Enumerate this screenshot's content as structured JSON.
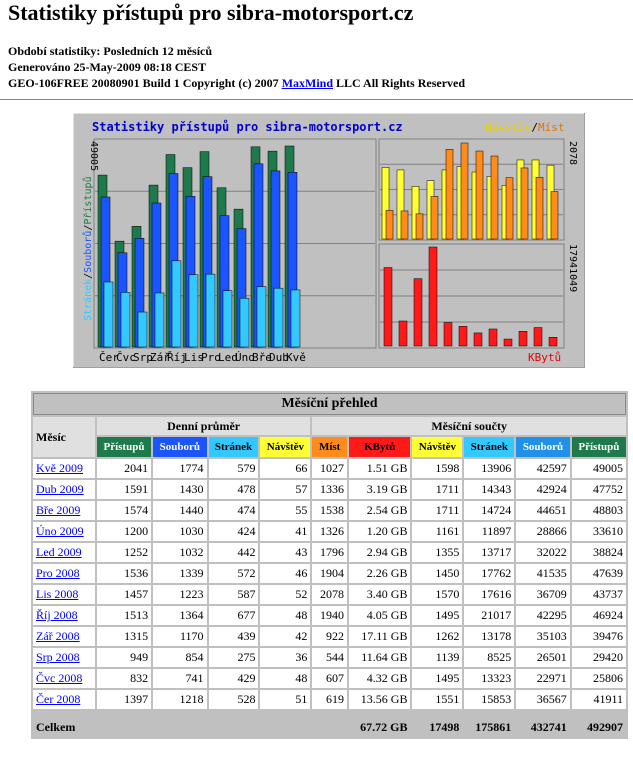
{
  "page": {
    "title": "Statistiky přístupů pro sibra-motorsport.cz",
    "period_label": "Období statistiky: Posledních 12 měsíců",
    "generated_label": "Generováno 25-May-2009 08:18 CEST",
    "copyright_prefix": "GEO-106FREE 20080901 Build 1 Copyright (c) 2007",
    "copyright_link": "MaxMind",
    "copyright_suffix": "LLC All Rights Reserved"
  },
  "chart_data": [
    {
      "type": "bar",
      "title": "Statistiky přístupů pro sibra-motorsport.cz",
      "categories": [
        "Čer",
        "Čvc",
        "Srp",
        "Zář",
        "Říj",
        "Lis",
        "Pro",
        "Led",
        "Úno",
        "Bře",
        "Dub",
        "Kvě"
      ],
      "ylabel_parts": [
        "Stránek",
        "Souborů",
        "Přístupů"
      ],
      "ylabel_sep": "/",
      "ymax_label": "49005",
      "ylim": [
        0,
        49005
      ],
      "series": [
        {
          "name": "Přístupů",
          "color": "#1e7a4a",
          "values": [
            41911,
            25806,
            29420,
            39476,
            46924,
            43737,
            47639,
            38824,
            33610,
            48803,
            47752,
            49005
          ]
        },
        {
          "name": "Souborů",
          "color": "#1a55ff",
          "values": [
            36567,
            22971,
            26501,
            35103,
            42295,
            36709,
            41535,
            32022,
            28866,
            44651,
            42924,
            42597
          ]
        },
        {
          "name": "Stránek",
          "color": "#33c8ff",
          "values": [
            15853,
            13323,
            8525,
            13178,
            21017,
            17616,
            17762,
            13717,
            11897,
            14724,
            14343,
            13906
          ]
        }
      ]
    },
    {
      "type": "bar",
      "legend": [
        "Návštěv",
        "/",
        "Míst"
      ],
      "legend_colors": [
        "#e8d000",
        "#000000",
        "#e87000"
      ],
      "ymax_label": "2078",
      "ylim": [
        0,
        2078
      ],
      "series": [
        {
          "name": "Návštěv",
          "color": "#ffff33",
          "values": [
            1551,
            1495,
            1139,
            1262,
            1495,
            1570,
            1450,
            1355,
            1161,
            1711,
            1711,
            1598
          ]
        },
        {
          "name": "Míst",
          "color": "#ff8c1a",
          "values": [
            619,
            607,
            544,
            922,
            1940,
            2078,
            1904,
            1796,
            1326,
            1538,
            1336,
            1027
          ]
        }
      ]
    },
    {
      "type": "bar",
      "legend": [
        "KBytů"
      ],
      "legend_colors": [
        "#e80000"
      ],
      "ymax_label": "17941049",
      "ylim": [
        0,
        17941049
      ],
      "series": [
        {
          "name": "KBytů",
          "color": "#ff1a1a",
          "values": [
            13.56,
            4.32,
            11.64,
            17.11,
            4.05,
            3.4,
            2.26,
            2.94,
            1.2,
            2.54,
            3.19,
            1.51
          ]
        }
      ]
    }
  ],
  "table": {
    "caption": "Měsíční přehled",
    "month_header": "Měsíc",
    "group_daily": "Denní průměr",
    "group_monthly": "Měsíční součty",
    "columns": [
      "Přístupů",
      "Souborů",
      "Stránek",
      "Návštěv",
      "Míst",
      "KBytů",
      "Návštěv",
      "Stránek",
      "Souborů",
      "Přístupů"
    ],
    "rows": [
      [
        "Kvě 2009",
        "2041",
        "1774",
        "579",
        "66",
        "1027",
        "1.51 GB",
        "1598",
        "13906",
        "42597",
        "49005"
      ],
      [
        "Dub 2009",
        "1591",
        "1430",
        "478",
        "57",
        "1336",
        "3.19 GB",
        "1711",
        "14343",
        "42924",
        "47752"
      ],
      [
        "Bře 2009",
        "1574",
        "1440",
        "474",
        "55",
        "1538",
        "2.54 GB",
        "1711",
        "14724",
        "44651",
        "48803"
      ],
      [
        "Úno 2009",
        "1200",
        "1030",
        "424",
        "41",
        "1326",
        "1.20 GB",
        "1161",
        "11897",
        "28866",
        "33610"
      ],
      [
        "Led 2009",
        "1252",
        "1032",
        "442",
        "43",
        "1796",
        "2.94 GB",
        "1355",
        "13717",
        "32022",
        "38824"
      ],
      [
        "Pro 2008",
        "1536",
        "1339",
        "572",
        "46",
        "1904",
        "2.26 GB",
        "1450",
        "17762",
        "41535",
        "47639"
      ],
      [
        "Lis 2008",
        "1457",
        "1223",
        "587",
        "52",
        "2078",
        "3.40 GB",
        "1570",
        "17616",
        "36709",
        "43737"
      ],
      [
        "Říj 2008",
        "1513",
        "1364",
        "677",
        "48",
        "1940",
        "4.05 GB",
        "1495",
        "21017",
        "42295",
        "46924"
      ],
      [
        "Zář 2008",
        "1315",
        "1170",
        "439",
        "42",
        "922",
        "17.11 GB",
        "1262",
        "13178",
        "35103",
        "39476"
      ],
      [
        "Srp 2008",
        "949",
        "854",
        "275",
        "36",
        "544",
        "11.64 GB",
        "1139",
        "8525",
        "26501",
        "29420"
      ],
      [
        "Čvc 2008",
        "832",
        "741",
        "429",
        "48",
        "607",
        "4.32 GB",
        "1495",
        "13323",
        "22971",
        "25806"
      ],
      [
        "Čer 2008",
        "1397",
        "1218",
        "528",
        "51",
        "619",
        "13.56 GB",
        "1551",
        "15853",
        "36567",
        "41911"
      ]
    ],
    "total": [
      "Celkem",
      "67.72 GB",
      "17498",
      "175861",
      "432741",
      "492907"
    ]
  }
}
